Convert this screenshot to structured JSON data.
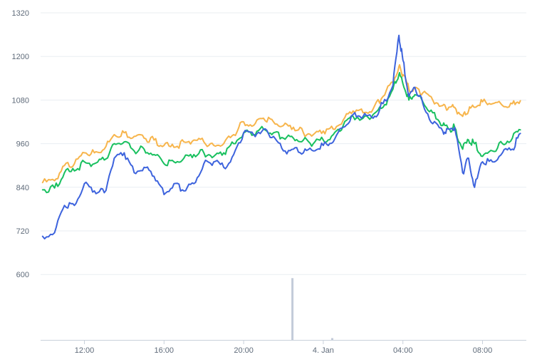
{
  "chart_data": {
    "type": "line",
    "title": "",
    "xlabel": "",
    "ylabel": "",
    "y_ticks": [
      "1320",
      "1200",
      "1080",
      "960",
      "840",
      "720",
      "600"
    ],
    "y_tick_values": [
      1320,
      1200,
      1080,
      960,
      840,
      720,
      600
    ],
    "ylim": [
      420,
      1320
    ],
    "x_ticks": [
      "12:00",
      "16:00",
      "20:00",
      "4. Jan",
      "04:00",
      "08:00"
    ],
    "x_tick_hours": [
      12,
      16,
      20,
      24,
      28,
      32
    ],
    "xlim_hours": [
      9.8,
      34.2
    ],
    "grid": true,
    "legend": "none",
    "series": [
      {
        "color": "#f7b54c",
        "x": [
          9.9,
          10.5,
          11.0,
          11.5,
          12.0,
          12.5,
          13.0,
          13.5,
          14.0,
          14.5,
          15.0,
          15.5,
          16.0,
          16.5,
          17.0,
          17.5,
          18.0,
          18.5,
          19.0,
          19.5,
          20.0,
          20.5,
          21.0,
          21.5,
          22.0,
          22.5,
          23.0,
          23.5,
          24.0,
          24.5,
          25.0,
          25.5,
          26.0,
          26.5,
          27.0,
          27.5,
          27.8,
          28.0,
          28.3,
          28.6,
          29.0,
          29.5,
          30.0,
          30.3,
          30.6,
          31.0,
          31.3,
          31.6,
          32.0,
          32.5,
          33.0,
          33.5,
          33.9
        ],
        "values": [
          853,
          858,
          900,
          905,
          935,
          935,
          945,
          985,
          990,
          980,
          975,
          970,
          955,
          950,
          965,
          970,
          965,
          955,
          960,
          985,
          1020,
          1010,
          1030,
          1020,
          1010,
          1005,
          990,
          985,
          995,
          1000,
          1025,
          1050,
          1045,
          1055,
          1090,
          1130,
          1172,
          1150,
          1110,
          1115,
          1100,
          1080,
          1065,
          1060,
          1060,
          1035,
          1050,
          1060,
          1075,
          1070,
          1065,
          1070,
          1078
        ]
      },
      {
        "color": "#19c05f",
        "x": [
          9.9,
          10.5,
          11.0,
          11.5,
          12.0,
          12.5,
          13.0,
          13.5,
          14.0,
          14.5,
          15.0,
          15.5,
          16.0,
          16.5,
          17.0,
          17.5,
          18.0,
          18.5,
          19.0,
          19.5,
          20.0,
          20.5,
          21.0,
          21.5,
          22.0,
          22.5,
          23.0,
          23.5,
          24.0,
          24.5,
          25.0,
          25.5,
          26.0,
          26.5,
          27.0,
          27.5,
          27.8,
          28.0,
          28.3,
          28.6,
          29.0,
          29.5,
          30.0,
          30.3,
          30.6,
          31.0,
          31.3,
          31.6,
          32.0,
          32.5,
          33.0,
          33.5,
          33.9
        ],
        "values": [
          833,
          838,
          880,
          885,
          910,
          905,
          915,
          960,
          965,
          940,
          945,
          930,
          905,
          910,
          920,
          930,
          935,
          925,
          935,
          960,
          990,
          985,
          1000,
          990,
          975,
          975,
          970,
          960,
          970,
          985,
          1010,
          1035,
          1030,
          1040,
          1060,
          1110,
          1150,
          1125,
          1080,
          1095,
          1075,
          1045,
          1010,
          1000,
          1005,
          945,
          970,
          960,
          925,
          940,
          960,
          975,
          998
        ]
      },
      {
        "color": "#3d63dd",
        "x": [
          9.9,
          10.5,
          11.0,
          11.5,
          12.0,
          12.5,
          13.0,
          13.5,
          14.0,
          14.5,
          15.0,
          15.5,
          16.0,
          16.5,
          17.0,
          17.5,
          18.0,
          18.5,
          19.0,
          19.5,
          20.0,
          20.5,
          21.0,
          21.5,
          22.0,
          22.5,
          23.0,
          23.5,
          24.0,
          24.5,
          25.0,
          25.5,
          26.0,
          26.5,
          27.0,
          27.5,
          27.8,
          28.0,
          28.3,
          28.6,
          29.0,
          29.5,
          30.0,
          30.3,
          30.6,
          31.0,
          31.3,
          31.6,
          32.0,
          32.5,
          33.0,
          33.5,
          33.9
        ],
        "values": [
          705,
          715,
          790,
          790,
          850,
          830,
          825,
          920,
          935,
          880,
          895,
          870,
          820,
          850,
          830,
          850,
          905,
          910,
          895,
          930,
          990,
          985,
          1000,
          980,
          940,
          945,
          935,
          940,
          955,
          965,
          1005,
          1040,
          1035,
          1030,
          1070,
          1120,
          1258,
          1190,
          1090,
          1115,
          1070,
          1015,
          995,
          1000,
          1005,
          880,
          920,
          840,
          910,
          910,
          935,
          945,
          988
        ]
      }
    ],
    "volume_bars": [
      {
        "x": 22.45,
        "value": 590
      },
      {
        "x": 24.45,
        "value": 425
      }
    ]
  }
}
